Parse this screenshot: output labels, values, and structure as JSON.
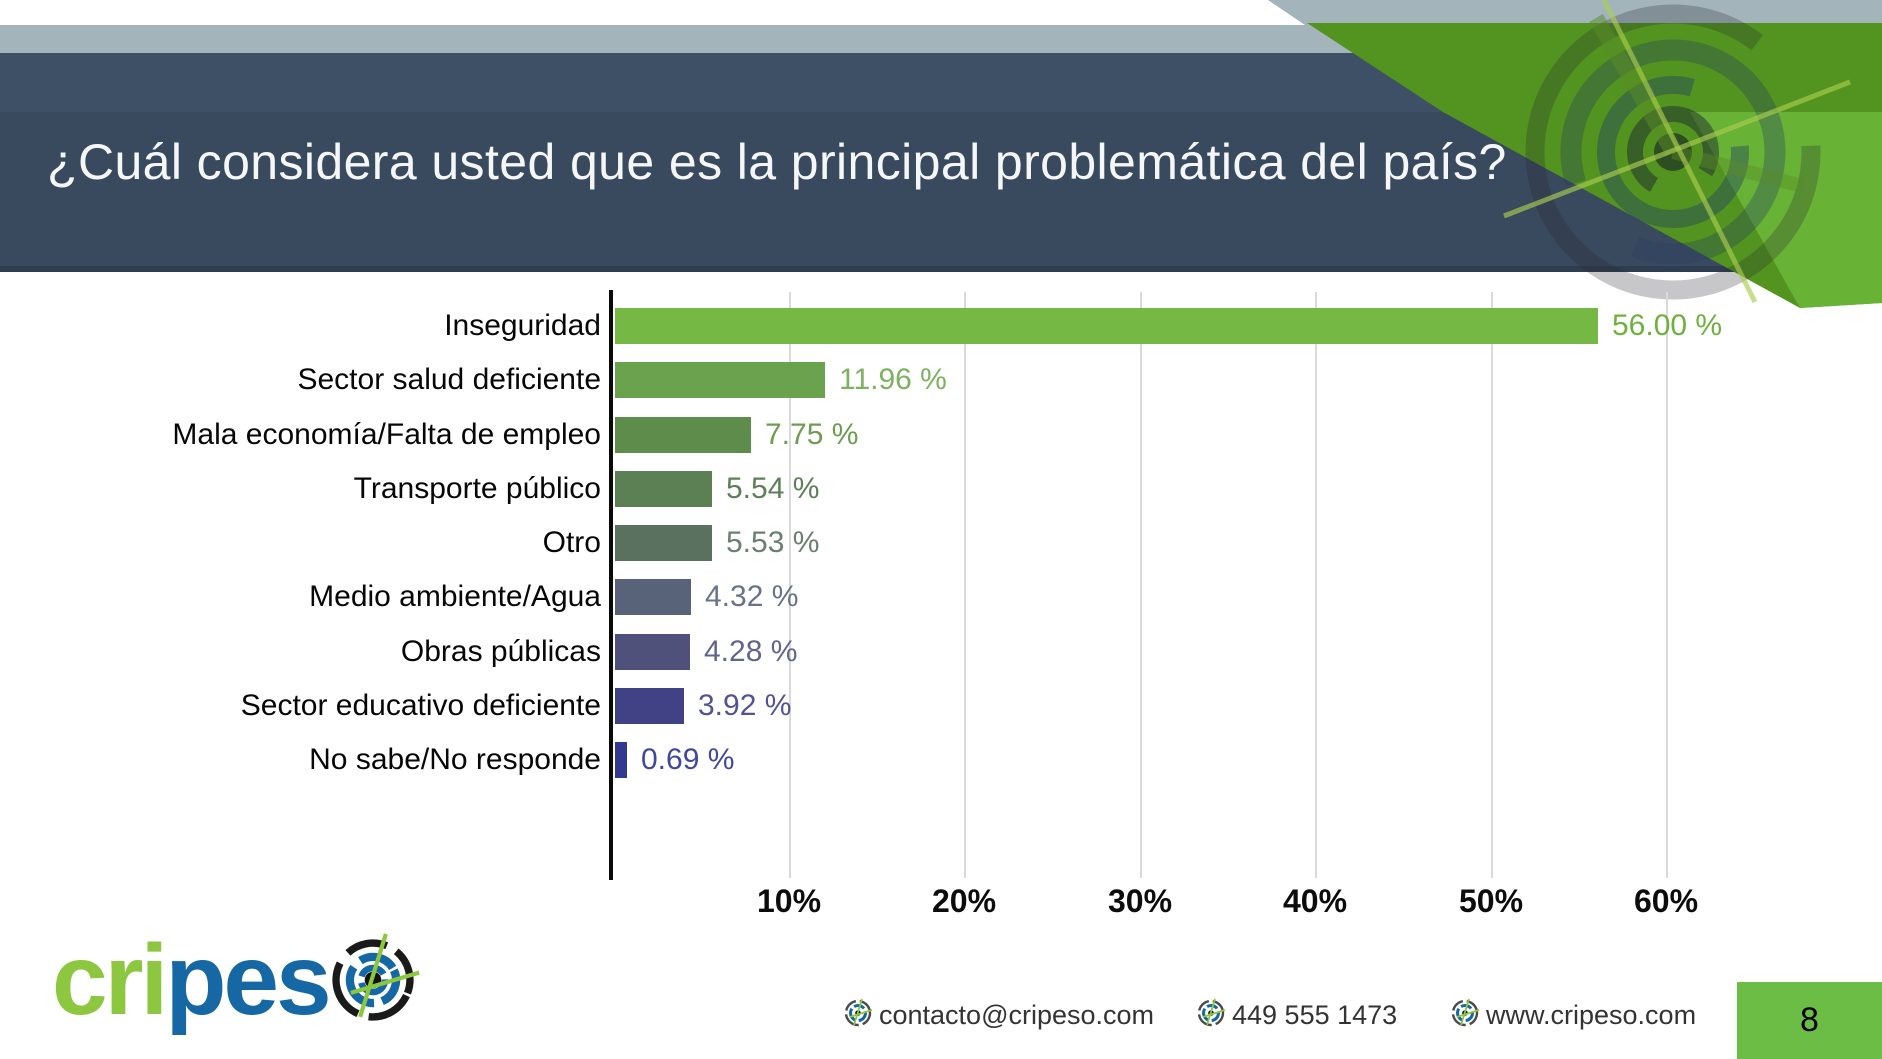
{
  "slide": {
    "title": "¿Cuál considera usted que es la principal problemática del país?",
    "page_number": "8"
  },
  "chart_data": {
    "type": "bar",
    "orientation": "horizontal",
    "title": "",
    "categories": [
      "Inseguridad",
      "Sector salud deficiente",
      "Mala economía/Falta de empleo",
      "Transporte público",
      "Otro",
      "Medio ambiente/Agua",
      "Obras públicas",
      "Sector educativo deficiente",
      "No sabe/No responde"
    ],
    "values": [
      56.0,
      11.96,
      7.75,
      5.54,
      5.53,
      4.32,
      4.28,
      3.92,
      0.69
    ],
    "value_labels": [
      "56.00 %",
      "11.96 %",
      "7.75 %",
      "5.54 %",
      "5.53 %",
      "4.32 %",
      "4.28 %",
      "3.92 %",
      "0.69 %"
    ],
    "bar_colors": [
      "#75b843",
      "#6aa24e",
      "#5e8c4a",
      "#5c8054",
      "#5a715f",
      "#586279",
      "#50517b",
      "#414186",
      "#32398f"
    ],
    "value_label_colors": [
      "#6fb13e",
      "#7cb260",
      "#6f9b53",
      "#5e8058",
      "#6a7f72",
      "#68728b",
      "#62648d",
      "#525297",
      "#3f47a0"
    ],
    "x_tick_labels": [
      "10%",
      "20%",
      "30%",
      "40%",
      "50%",
      "60%"
    ],
    "x_ticks_pct": [
      10,
      20,
      30,
      40,
      50,
      60
    ],
    "xlim": [
      0,
      60
    ],
    "grid": true,
    "xlabel": "",
    "ylabel": ""
  },
  "footer": {
    "logo_part1": "cri",
    "logo_part2": "pes",
    "contacts": [
      "contacto@cripeso.com",
      "449 555 1473",
      "www.cripeso.com"
    ]
  },
  "colors": {
    "gray_band": "#a3b4bb",
    "header_top": "#3e5065",
    "header_main": "#394a5e",
    "header_edge": "#2e3e50",
    "green_medium": "#52941f",
    "green_bright": "#68b235",
    "logo_green": "#8dc63f",
    "logo_blue": "#1568a4",
    "page_box_green": "#6cbd45"
  }
}
